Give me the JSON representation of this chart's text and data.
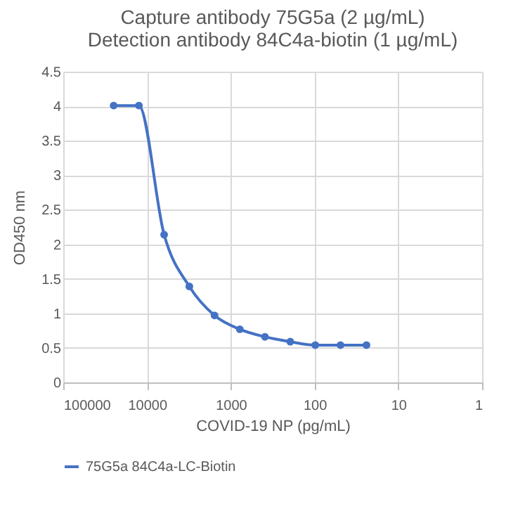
{
  "chart_data": {
    "type": "line",
    "title": [
      "Capture antibody 75G5a (2 µg/mL)",
      "Detection antibody 84C4a-biotin (1 µg/mL)"
    ],
    "xlabel": "COVID-19 NP (pg/mL)",
    "ylabel": "OD450 nm",
    "x": [
      25000,
      12500,
      6250,
      3125,
      1563,
      781,
      391,
      195,
      98,
      49,
      24
    ],
    "series": [
      {
        "name": "75G5a 84C4a-LC-Biotin",
        "color": "#4472c4",
        "values": [
          4.01,
          4.01,
          2.14,
          1.39,
          0.97,
          0.77,
          0.66,
          0.59,
          0.54,
          0.54,
          0.54
        ]
      }
    ],
    "log": "x",
    "xlim": [
      100000,
      1
    ],
    "xticks": [
      100000,
      10000,
      1000,
      100,
      10,
      1
    ],
    "ylim": [
      0,
      4.5
    ],
    "yticks": [
      0,
      0.5,
      1,
      1.5,
      2,
      2.5,
      3,
      3.5,
      4,
      4.5
    ],
    "grid": true,
    "legend": "bottom",
    "marker": "circle",
    "line_style": "solid"
  }
}
